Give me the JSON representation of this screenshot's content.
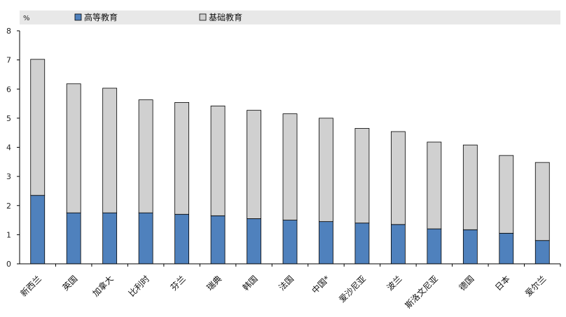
{
  "chart_data": {
    "type": "bar",
    "stacked": true,
    "unit": "%",
    "ylim": [
      0,
      8
    ],
    "yticks": [
      "0",
      "1",
      "2",
      "3",
      "4",
      "5",
      "6",
      "7",
      "8"
    ],
    "categories": [
      "新西兰",
      "英国",
      "加拿大",
      "比利时",
      "芬兰",
      "瑞典",
      "韩国",
      "法国",
      "中国*",
      "爱沙尼亚",
      "波兰",
      "斯洛文尼亚",
      "德国",
      "日本",
      "爱尔兰"
    ],
    "series": [
      {
        "name": "高等教育",
        "color": "#4f81bd",
        "values": [
          2.35,
          1.75,
          1.75,
          1.75,
          1.7,
          1.65,
          1.55,
          1.5,
          1.45,
          1.4,
          1.35,
          1.2,
          1.17,
          1.05,
          0.8
        ]
      },
      {
        "name": "基础教育",
        "color": "#d0d0d0",
        "values": [
          4.67,
          4.43,
          4.28,
          3.88,
          3.84,
          3.77,
          3.72,
          3.65,
          3.55,
          3.25,
          3.19,
          2.98,
          2.91,
          2.67,
          2.68
        ]
      }
    ],
    "grid": false,
    "legend_position": "top"
  }
}
